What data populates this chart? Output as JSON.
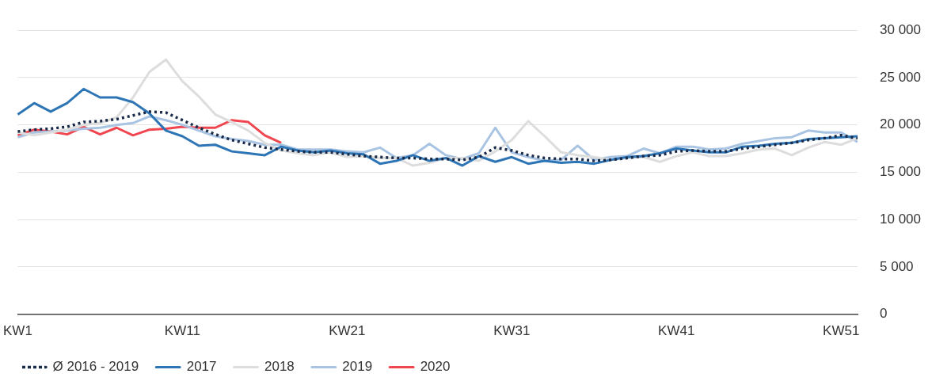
{
  "chart_data": {
    "type": "line",
    "categories": [
      "KW1",
      null,
      null,
      null,
      null,
      null,
      null,
      null,
      null,
      null,
      "KW11",
      null,
      null,
      null,
      null,
      null,
      null,
      null,
      null,
      null,
      "KW21",
      null,
      null,
      null,
      null,
      null,
      null,
      null,
      null,
      null,
      "KW31",
      null,
      null,
      null,
      null,
      null,
      null,
      null,
      null,
      null,
      "KW41",
      null,
      null,
      null,
      null,
      null,
      null,
      null,
      null,
      null,
      "KW51",
      null
    ],
    "series": [
      {
        "name": "Ø 2016 - 2019",
        "color": "#1a2b4a",
        "line_style": "dotted",
        "values": [
          19300,
          19500,
          19600,
          19800,
          20300,
          20400,
          20600,
          21000,
          21400,
          21300,
          20500,
          19700,
          19000,
          18400,
          18000,
          17600,
          17400,
          17200,
          17100,
          17100,
          16900,
          16700,
          16600,
          16500,
          16500,
          16400,
          16400,
          16300,
          16600,
          17600,
          17300,
          16800,
          16500,
          16400,
          16400,
          16200,
          16300,
          16500,
          16700,
          16800,
          17200,
          17300,
          17200,
          17200,
          17500,
          17700,
          17900,
          18100,
          18400,
          18600,
          18900,
          18600
        ]
      },
      {
        "name": "2017",
        "color": "#2e75b6",
        "values": [
          21100,
          22300,
          21400,
          22300,
          23800,
          22900,
          22900,
          22400,
          21200,
          19400,
          18800,
          17800,
          17900,
          17200,
          17000,
          16800,
          17700,
          17300,
          17100,
          17300,
          17000,
          16900,
          15900,
          16200,
          16800,
          16200,
          16500,
          15700,
          16700,
          16100,
          16600,
          15900,
          16200,
          16000,
          16100,
          15900,
          16300,
          16600,
          16700,
          17000,
          17500,
          17300,
          17100,
          17100,
          17700,
          17800,
          18000,
          18100,
          18500,
          18600,
          18700,
          18800
        ]
      },
      {
        "name": "2018",
        "color": "#dddddd",
        "values": [
          19200,
          18900,
          19200,
          19500,
          20000,
          20200,
          20800,
          22900,
          25600,
          26900,
          24600,
          23000,
          21100,
          20300,
          19400,
          18100,
          17300,
          17000,
          16800,
          17100,
          16600,
          16700,
          16500,
          16500,
          15700,
          16000,
          16500,
          16500,
          16200,
          17200,
          18400,
          20400,
          18800,
          17100,
          16800,
          16600,
          16300,
          16500,
          16600,
          16100,
          16700,
          17100,
          16700,
          16700,
          17000,
          17400,
          17500,
          16800,
          17600,
          18200,
          17900,
          18600
        ]
      },
      {
        "name": "2019",
        "color": "#a9c4e2",
        "values": [
          18700,
          19200,
          19300,
          19400,
          19600,
          19700,
          20000,
          20200,
          20900,
          20500,
          20000,
          19400,
          18800,
          18500,
          18300,
          17900,
          17900,
          17400,
          17400,
          17400,
          17200,
          17100,
          17600,
          16500,
          16800,
          18000,
          16800,
          16400,
          17000,
          19700,
          17100,
          16600,
          16200,
          16300,
          17800,
          16300,
          16600,
          16700,
          17500,
          17000,
          17700,
          17700,
          17400,
          17500,
          18000,
          18300,
          18600,
          18700,
          19400,
          19200,
          19200,
          18200
        ]
      },
      {
        "name": "2020",
        "color": "#f0464f",
        "values": [
          18900,
          19500,
          19300,
          19000,
          19800,
          19000,
          19700,
          18900,
          19500,
          19600,
          19800,
          19700,
          19700,
          20500,
          20300,
          18900,
          18100,
          null,
          null,
          null,
          null,
          null,
          null,
          null,
          null,
          null,
          null,
          null,
          null,
          null,
          null,
          null,
          null,
          null,
          null,
          null,
          null,
          null,
          null,
          null,
          null,
          null,
          null,
          null,
          null,
          null,
          null,
          null,
          null,
          null,
          null,
          null
        ]
      }
    ],
    "ylim": [
      0,
      30000
    ],
    "yticks": [
      {
        "value": 0,
        "label": "0"
      },
      {
        "value": 5000,
        "label": "5 000"
      },
      {
        "value": 10000,
        "label": "10 000"
      },
      {
        "value": 15000,
        "label": "15 000"
      },
      {
        "value": 20000,
        "label": "20 000"
      },
      {
        "value": 25000,
        "label": "25 000"
      },
      {
        "value": 30000,
        "label": "30 000"
      }
    ],
    "grid": "y",
    "legend": "bottom left",
    "marker": "none"
  }
}
